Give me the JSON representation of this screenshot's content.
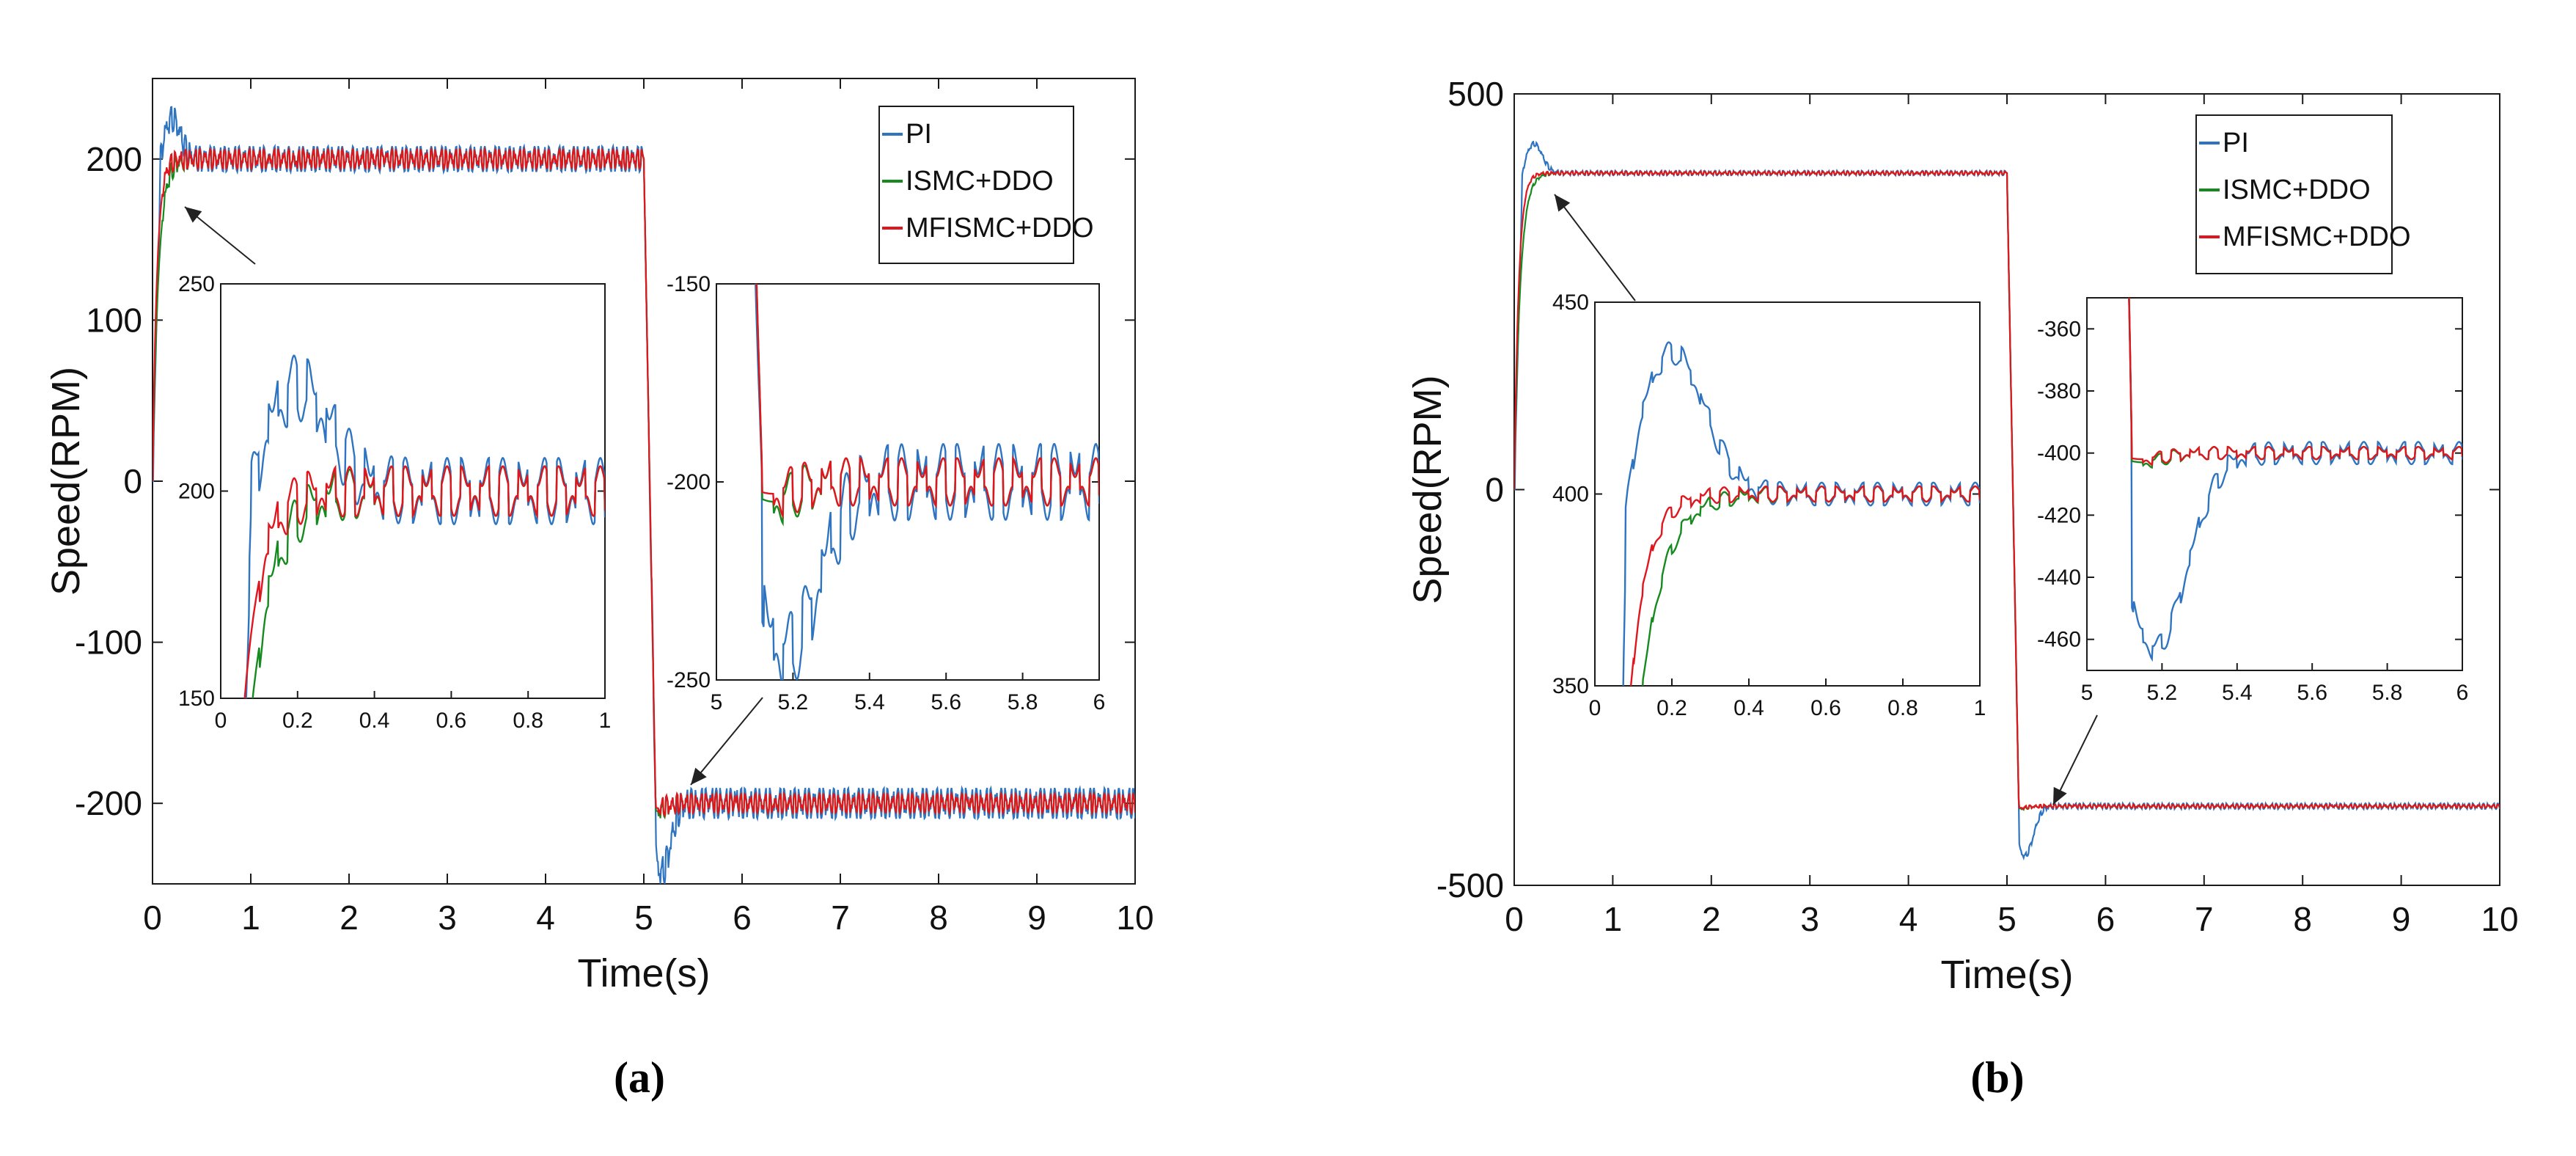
{
  "figure": {
    "panels": [
      {
        "label": "(a)"
      },
      {
        "label": "(b)"
      }
    ]
  },
  "colors": {
    "PI": "#2e74c0",
    "ISMC+DDO": "#178a1f",
    "MFISMC+DDO": "#e0161e",
    "axis": "#1a1a1a",
    "grid_tick": "#333333"
  },
  "chart_data": [
    {
      "type": "line",
      "panel": "(a)",
      "xlabel": "Time(s)",
      "ylabel": "Speed(RPM)",
      "xlim": [
        0,
        10
      ],
      "ylim": [
        -250,
        250
      ],
      "xticks": [
        0,
        1,
        2,
        3,
        4,
        5,
        6,
        7,
        8,
        9,
        10
      ],
      "yticks": [
        -200,
        -100,
        0,
        100,
        200
      ],
      "ytick_labels": [
        "-200",
        "-100",
        "0",
        "100",
        "200"
      ],
      "legend": [
        "PI",
        "ISMC+DDO",
        "MFISMC+DDO"
      ],
      "legend_position": "top-right",
      "series": [
        {
          "name": "PI",
          "step_time": 5,
          "start": 0,
          "end": -200,
          "reference": 200,
          "peak_overshoot": 225,
          "undershoot": -243,
          "ripple": 8
        },
        {
          "name": "ISMC+DDO",
          "step_time": 5,
          "start": 0,
          "end": -200,
          "reference": 200,
          "peak_overshoot": 203,
          "undershoot": -205,
          "ripple": 6
        },
        {
          "name": "MFISMC+DDO",
          "step_time": 5,
          "start": 0,
          "end": -200,
          "reference": 200,
          "peak_overshoot": 202,
          "undershoot": -203,
          "ripple": 6
        }
      ],
      "insets": [
        {
          "xlim": [
            0,
            1
          ],
          "ylim": [
            150,
            250
          ],
          "xticks": [
            0,
            0.2,
            0.4,
            0.6,
            0.8,
            1
          ],
          "xtick_labels": [
            "0",
            "0.2",
            "0.4",
            "0.6",
            "0.8",
            "1"
          ],
          "yticks": [
            150,
            200,
            250
          ],
          "ytick_labels": [
            "150",
            "200",
            "250"
          ],
          "segment": "startup"
        },
        {
          "xlim": [
            5,
            6
          ],
          "ylim": [
            -250,
            -150
          ],
          "xticks": [
            5,
            5.2,
            5.4,
            5.6,
            5.8,
            6
          ],
          "xtick_labels": [
            "5",
            "5.2",
            "5.4",
            "5.6",
            "5.8",
            "6"
          ],
          "yticks": [
            -250,
            -200,
            -150
          ],
          "ytick_labels": [
            "-250",
            "-200",
            "-150"
          ],
          "segment": "reversal"
        }
      ]
    },
    {
      "type": "line",
      "panel": "(b)",
      "xlabel": "Time(s)",
      "ylabel": "Speed(RPM)",
      "xlim": [
        0,
        10
      ],
      "ylim": [
        -500,
        500
      ],
      "xticks": [
        0,
        1,
        2,
        3,
        4,
        5,
        6,
        7,
        8,
        9,
        10
      ],
      "yticks": [
        -500,
        0,
        500
      ],
      "ytick_labels": [
        "-500",
        "0",
        "500"
      ],
      "legend": [
        "PI",
        "ISMC+DDO",
        "MFISMC+DDO"
      ],
      "legend_position": "top-right",
      "series": [
        {
          "name": "PI",
          "step_time": 5,
          "start": 0,
          "end": -400,
          "reference": 400,
          "peak_overshoot": 437,
          "undershoot": -463,
          "ripple": 3
        },
        {
          "name": "ISMC+DDO",
          "step_time": 5,
          "start": 0,
          "end": -400,
          "reference": 400,
          "peak_overshoot": 401,
          "undershoot": -403,
          "ripple": 2
        },
        {
          "name": "MFISMC+DDO",
          "step_time": 5,
          "start": 0,
          "end": -400,
          "reference": 400,
          "peak_overshoot": 401,
          "undershoot": -402,
          "ripple": 2
        }
      ],
      "insets": [
        {
          "xlim": [
            0,
            1
          ],
          "ylim": [
            350,
            450
          ],
          "xticks": [
            0,
            0.2,
            0.4,
            0.6,
            0.8,
            1
          ],
          "xtick_labels": [
            "0",
            "0.2",
            "0.4",
            "0.6",
            "0.8",
            "1"
          ],
          "yticks": [
            350,
            400,
            450
          ],
          "ytick_labels": [
            "350",
            "400",
            "450"
          ],
          "segment": "startup"
        },
        {
          "xlim": [
            5,
            6
          ],
          "ylim": [
            -470,
            -350
          ],
          "xticks": [
            5,
            5.2,
            5.4,
            5.6,
            5.8,
            6
          ],
          "xtick_labels": [
            "5",
            "5.2",
            "5.4",
            "5.6",
            "5.8",
            "6"
          ],
          "yticks": [
            -460,
            -440,
            -420,
            -400,
            -380,
            -360
          ],
          "ytick_labels": [
            "-460",
            "-440",
            "-420",
            "-400",
            "-380",
            "-360"
          ],
          "segment": "reversal"
        }
      ]
    }
  ]
}
